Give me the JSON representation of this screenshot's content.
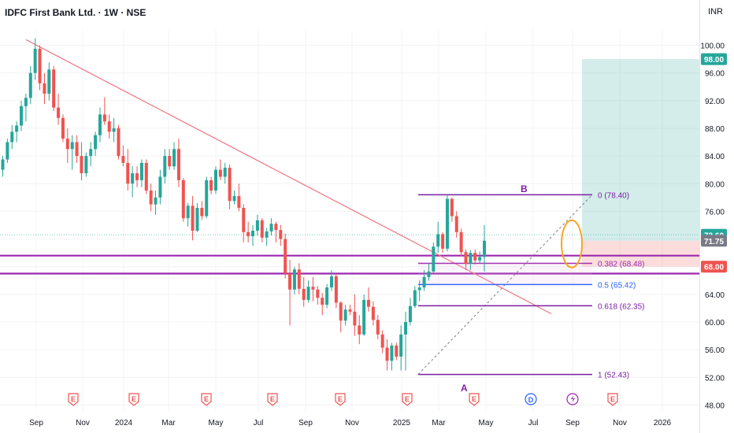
{
  "header": {
    "symbol_title": "IDFC First Bank Ltd. · 1W · NSE",
    "currency": "INR"
  },
  "chart_data": {
    "type": "candlestick",
    "ylim": [
      48,
      101
    ],
    "y_ticks": [
      48,
      52,
      56,
      60,
      64,
      68,
      72,
      76,
      80,
      84,
      88,
      92,
      96,
      100
    ],
    "y_tick_labels": [
      "48.00",
      "52.00",
      "56.00",
      "60.00",
      "64.00",
      "68.00",
      "72.00",
      "76.00",
      "80.00",
      "84.00",
      "88.00",
      "92.00",
      "96.00",
      "100.00"
    ],
    "x_ticks": [
      "Sep",
      "Nov",
      "2024",
      "Mar",
      "May",
      "Jul",
      "Sep",
      "Nov",
      "2025",
      "Mar",
      "May",
      "Jul",
      "Sep",
      "Nov",
      "2026"
    ],
    "colors": {
      "up": "#26a69a",
      "down": "#ef5350",
      "trendline": "#f07583",
      "fib_purple": "#9c27b0",
      "fib_blue": "#2962ff",
      "horizontal": "#9c27b0"
    },
    "candles_ohlc": [
      [
        82,
        84,
        81,
        83.5
      ],
      [
        83.5,
        86.5,
        83,
        86
      ],
      [
        86,
        88.5,
        85,
        87.5
      ],
      [
        87.5,
        89,
        86,
        88.4
      ],
      [
        88.4,
        92,
        87.6,
        91.2
      ],
      [
        91.2,
        93,
        89,
        92.4
      ],
      [
        92.4,
        97,
        91.5,
        96
      ],
      [
        96,
        101,
        95,
        99.5
      ],
      [
        99.5,
        100,
        93.5,
        94.5
      ],
      [
        94.5,
        96,
        91.5,
        93
      ],
      [
        93,
        97.5,
        92,
        96.5
      ],
      [
        96.5,
        97,
        90.5,
        91
      ],
      [
        91,
        93,
        88.5,
        89.5
      ],
      [
        89.5,
        90,
        86,
        86.5
      ],
      [
        86.5,
        88,
        83,
        85
      ],
      [
        85,
        87,
        82,
        86
      ],
      [
        86,
        87,
        83,
        84
      ],
      [
        84,
        86,
        80.5,
        81.5
      ],
      [
        81.5,
        84.5,
        81,
        84
      ],
      [
        84,
        86,
        82.5,
        85
      ],
      [
        85,
        87.5,
        84,
        87
      ],
      [
        87,
        91,
        86,
        90
      ],
      [
        90,
        92.5,
        88.5,
        89
      ],
      [
        89,
        90,
        86.5,
        87.5
      ],
      [
        87.5,
        89.5,
        86,
        88
      ],
      [
        88,
        88.5,
        83.5,
        84
      ],
      [
        84,
        85.5,
        82.5,
        83
      ],
      [
        83,
        85,
        79,
        80
      ],
      [
        80,
        82.5,
        78,
        81.5
      ],
      [
        81.5,
        82.5,
        79.5,
        80.5
      ],
      [
        80.5,
        83.5,
        79.5,
        83
      ],
      [
        83,
        83.5,
        78.5,
        79
      ],
      [
        79,
        80,
        76,
        77
      ],
      [
        77,
        79,
        75.5,
        78
      ],
      [
        78,
        82,
        77,
        81
      ],
      [
        81,
        85,
        80,
        84
      ],
      [
        84,
        85,
        82,
        82.5
      ],
      [
        82.5,
        86,
        82,
        85
      ],
      [
        85,
        86.5,
        79.5,
        80.5
      ],
      [
        80.5,
        80.8,
        74.5,
        75
      ],
      [
        75,
        77.2,
        73.8,
        76.8
      ],
      [
        76.8,
        78.2,
        71.8,
        73.2
      ],
      [
        73.2,
        77.2,
        73,
        76.5
      ],
      [
        76.5,
        77.5,
        74.8,
        75.3
      ],
      [
        75.3,
        81,
        75,
        80.5
      ],
      [
        80.5,
        81,
        78.5,
        79
      ],
      [
        79,
        82.5,
        78.5,
        82
      ],
      [
        82,
        83.5,
        80.5,
        81
      ],
      [
        81,
        83,
        80,
        82.3
      ],
      [
        82.3,
        82.8,
        76.3,
        77.5
      ],
      [
        77.5,
        79,
        77,
        78.2
      ],
      [
        78.2,
        80,
        76,
        76.5
      ],
      [
        76.5,
        77,
        71.5,
        73
      ],
      [
        73,
        74.5,
        71.5,
        72.4
      ],
      [
        72.4,
        74,
        71,
        73.2
      ],
      [
        73.2,
        75.5,
        72.5,
        74.7
      ],
      [
        74.7,
        75,
        71.5,
        72.2
      ],
      [
        72.2,
        73.6,
        71,
        73.1
      ],
      [
        73.1,
        75,
        72.5,
        74.2
      ],
      [
        74.2,
        74.5,
        71.5,
        73.3
      ],
      [
        73.3,
        74,
        71,
        72
      ],
      [
        72,
        72.8,
        66.3,
        67
      ],
      [
        67,
        69,
        59.5,
        64.7
      ],
      [
        64.7,
        68,
        64,
        67.6
      ],
      [
        67.6,
        68.5,
        64,
        64.8
      ],
      [
        64.8,
        66.5,
        62.2,
        63.2
      ],
      [
        63.2,
        66,
        62.8,
        65.1
      ],
      [
        65.1,
        66.5,
        63,
        64.7
      ],
      [
        64.7,
        65.2,
        62.5,
        63.5
      ],
      [
        63.5,
        64.2,
        61,
        62.5
      ],
      [
        62.5,
        65.5,
        62,
        65
      ],
      [
        65,
        67.5,
        64.5,
        66.6
      ],
      [
        66.6,
        67,
        62,
        62.8
      ],
      [
        62.8,
        63,
        58.5,
        60.2
      ],
      [
        60.2,
        62.5,
        59.5,
        61.8
      ],
      [
        61.8,
        62.5,
        61,
        61.5
      ],
      [
        61.5,
        64,
        58,
        59.5
      ],
      [
        59.5,
        61,
        56.8,
        58.2
      ],
      [
        58.2,
        64,
        58,
        63.2
      ],
      [
        63.2,
        65,
        61.5,
        62.2
      ],
      [
        62.2,
        63,
        59.5,
        60.3
      ],
      [
        60.3,
        61,
        57.5,
        58.2
      ],
      [
        58.2,
        58.8,
        55.5,
        56.3
      ],
      [
        56.3,
        57.5,
        53,
        54.4
      ],
      [
        54.4,
        57,
        53,
        56.6
      ],
      [
        56.6,
        57,
        54.5,
        55
      ],
      [
        55,
        59.5,
        53,
        58.2
      ],
      [
        58.2,
        61.5,
        53,
        60
      ],
      [
        60,
        63.5,
        59.5,
        62.3
      ],
      [
        62.3,
        65.2,
        62,
        64.6
      ],
      [
        64.6,
        66,
        63,
        65
      ],
      [
        65,
        67.5,
        64.5,
        66.5
      ],
      [
        66.5,
        68.5,
        66,
        67.3
      ],
      [
        67.3,
        71.5,
        67,
        70.9
      ],
      [
        70.9,
        74.5,
        70,
        72.7
      ],
      [
        72.7,
        73,
        70,
        70.6
      ],
      [
        70.6,
        78.4,
        70.2,
        77.8
      ],
      [
        77.8,
        78,
        74.5,
        75.3
      ],
      [
        75.3,
        76,
        72.2,
        73
      ],
      [
        73,
        73.5,
        69.5,
        70.1
      ],
      [
        70.1,
        70.5,
        67.5,
        68.4
      ],
      [
        68.4,
        70.4,
        67.5,
        70
      ],
      [
        70,
        70.5,
        68.3,
        68.9
      ],
      [
        68.9,
        70.2,
        68.5,
        69.4
      ],
      [
        69.4,
        74,
        67.3,
        71.75
      ]
    ],
    "fibonacci": {
      "levels": [
        {
          "ratio_label": "0 (78.40)",
          "price": 78.4
        },
        {
          "ratio_label": "0.382 (68.48)",
          "price": 68.48
        },
        {
          "ratio_label": "0.5 (65.42)",
          "price": 65.42
        },
        {
          "ratio_label": "0.618 (62.35)",
          "price": 62.35
        },
        {
          "ratio_label": "1 (52.43)",
          "price": 52.43
        }
      ],
      "swing_labels": [
        "A",
        "B"
      ]
    },
    "horizontal_lines": [
      69.6,
      67.0
    ],
    "position_tool": {
      "entry": 71.75,
      "target": 98.0,
      "stop": 68.0
    },
    "price_tags": [
      {
        "label": "98.00",
        "price": 98.0,
        "color": "#26a69a"
      },
      {
        "label": "72.60",
        "price": 72.6,
        "color": "#26a69a"
      },
      {
        "label": "71.75",
        "price": 71.75,
        "color": "#787b86"
      },
      {
        "label": "68.00",
        "price": 68.0,
        "color": "#ef5350"
      }
    ],
    "event_markers": [
      "E",
      "E",
      "E",
      "E",
      "E",
      "E",
      "E",
      "D",
      "E"
    ]
  }
}
